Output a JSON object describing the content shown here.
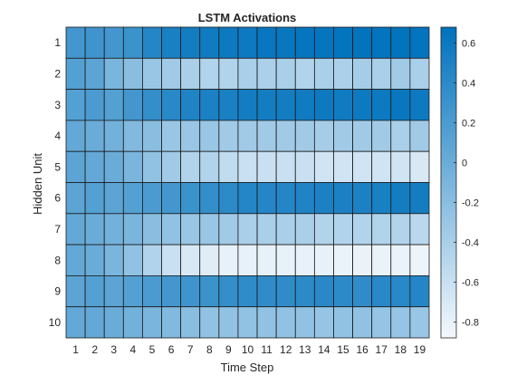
{
  "chart_data": {
    "type": "heatmap",
    "title": "LSTM Activations",
    "xlabel": "Time Step",
    "ylabel": "Hidden Unit",
    "x": [
      "1",
      "2",
      "3",
      "4",
      "5",
      "6",
      "7",
      "8",
      "9",
      "10",
      "11",
      "12",
      "13",
      "14",
      "15",
      "16",
      "17",
      "18",
      "19"
    ],
    "y": [
      "1",
      "2",
      "3",
      "4",
      "5",
      "6",
      "7",
      "8",
      "9",
      "10"
    ],
    "values": [
      [
        0.25,
        0.28,
        0.25,
        0.3,
        0.45,
        0.52,
        0.55,
        0.58,
        0.6,
        0.6,
        0.62,
        0.62,
        0.64,
        0.65,
        0.66,
        0.67,
        0.66,
        0.67,
        0.66
      ],
      [
        0.15,
        0.1,
        -0.1,
        -0.2,
        -0.3,
        -0.35,
        -0.4,
        -0.45,
        -0.45,
        -0.4,
        -0.42,
        -0.4,
        -0.45,
        -0.4,
        -0.42,
        -0.38,
        -0.4,
        -0.35,
        -0.4
      ],
      [
        0.15,
        0.2,
        0.15,
        0.25,
        0.35,
        0.42,
        0.48,
        0.5,
        0.52,
        0.55,
        0.55,
        0.55,
        0.58,
        0.6,
        0.58,
        0.6,
        0.6,
        0.62,
        0.6
      ],
      [
        0.05,
        0.0,
        -0.05,
        -0.15,
        -0.2,
        -0.3,
        -0.3,
        -0.3,
        -0.35,
        -0.35,
        -0.35,
        -0.35,
        -0.35,
        -0.38,
        -0.35,
        -0.35,
        -0.35,
        -0.4,
        -0.35
      ],
      [
        0.1,
        0.05,
        0.0,
        -0.1,
        -0.25,
        -0.35,
        -0.45,
        -0.45,
        -0.55,
        -0.6,
        -0.6,
        -0.6,
        -0.6,
        -0.65,
        -0.65,
        -0.65,
        -0.65,
        -0.65,
        -0.7
      ],
      [
        0.1,
        0.15,
        0.1,
        0.15,
        0.2,
        0.25,
        0.3,
        0.35,
        0.4,
        0.45,
        0.45,
        0.45,
        0.48,
        0.5,
        0.5,
        0.5,
        0.52,
        0.55,
        0.55
      ],
      [
        0.05,
        0.0,
        -0.05,
        -0.1,
        -0.2,
        -0.25,
        -0.3,
        -0.3,
        -0.35,
        -0.4,
        -0.4,
        -0.4,
        -0.4,
        -0.45,
        -0.45,
        -0.45,
        -0.45,
        -0.45,
        -0.5
      ],
      [
        0.05,
        0.0,
        -0.1,
        -0.25,
        -0.45,
        -0.6,
        -0.7,
        -0.75,
        -0.8,
        -0.8,
        -0.8,
        -0.8,
        -0.8,
        -0.8,
        -0.82,
        -0.82,
        -0.82,
        -0.82,
        -0.84
      ],
      [
        0.1,
        0.15,
        0.1,
        0.15,
        0.2,
        0.25,
        0.28,
        0.3,
        0.35,
        0.38,
        0.38,
        0.38,
        0.4,
        0.42,
        0.4,
        0.38,
        0.42,
        0.42,
        0.45
      ],
      [
        0.05,
        0.05,
        0.0,
        -0.05,
        -0.1,
        -0.15,
        -0.2,
        -0.25,
        -0.25,
        -0.25,
        -0.25,
        -0.25,
        -0.25,
        -0.28,
        -0.25,
        -0.25,
        -0.28,
        -0.28,
        -0.3
      ]
    ],
    "clim": [
      -0.88,
      0.68
    ],
    "colorbar_ticks": [
      0.6,
      0.4,
      0.2,
      0,
      -0.2,
      -0.4,
      -0.6,
      -0.8
    ],
    "colorbar_labels": [
      "0.6",
      "0.4",
      "0.2",
      "0",
      "-0.2",
      "-0.4",
      "-0.6",
      "-0.8"
    ],
    "colormap": {
      "low": "#f4f8fc",
      "high": "#0072bd"
    },
    "grid": true,
    "legend": "colorbar-right"
  }
}
